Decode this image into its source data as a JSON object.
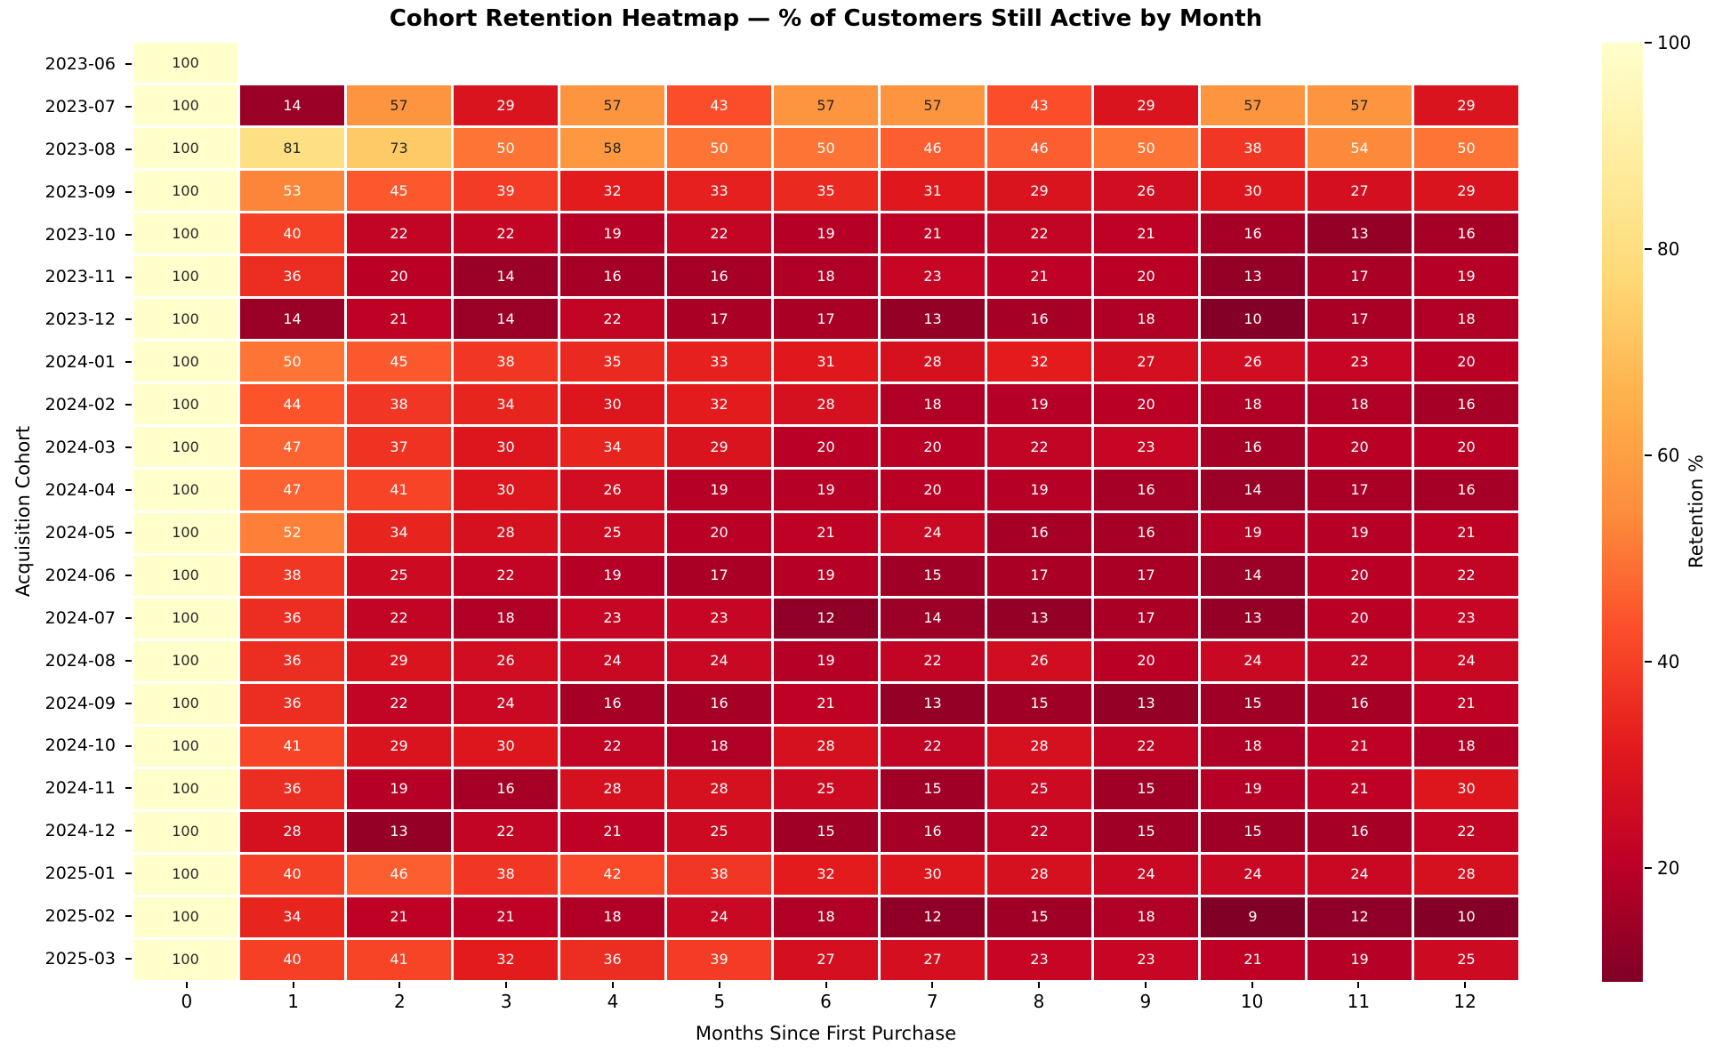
{
  "chart_data": {
    "type": "heatmap",
    "title": "Cohort Retention Heatmap — % of Customers Still Active by Month",
    "xlabel": "Months Since First Purchase",
    "ylabel": "Acquisition Cohort",
    "colorbar_label": "Retention %",
    "colorbar_ticks": [
      100,
      80,
      60,
      40,
      20
    ],
    "x_ticks": [
      "0",
      "1",
      "2",
      "3",
      "4",
      "5",
      "6",
      "7",
      "8",
      "9",
      "10",
      "11",
      "12"
    ],
    "cohorts": [
      "2023-06",
      "2023-07",
      "2023-08",
      "2023-09",
      "2023-10",
      "2023-11",
      "2023-12",
      "2024-01",
      "2024-02",
      "2024-03",
      "2024-04",
      "2024-05",
      "2024-06",
      "2024-07",
      "2024-08",
      "2024-09",
      "2024-10",
      "2024-11",
      "2024-12",
      "2025-01",
      "2025-02",
      "2025-03"
    ],
    "values": [
      [
        100,
        null,
        null,
        null,
        null,
        null,
        null,
        null,
        null,
        null,
        null,
        null,
        null
      ],
      [
        100,
        14,
        57,
        29,
        57,
        43,
        57,
        57,
        43,
        29,
        57,
        57,
        29
      ],
      [
        100,
        81,
        73,
        50,
        58,
        50,
        50,
        46,
        46,
        50,
        38,
        54,
        50
      ],
      [
        100,
        53,
        45,
        39,
        32,
        33,
        35,
        31,
        29,
        26,
        30,
        27,
        29
      ],
      [
        100,
        40,
        22,
        22,
        19,
        22,
        19,
        21,
        22,
        21,
        16,
        13,
        16
      ],
      [
        100,
        36,
        20,
        14,
        16,
        16,
        18,
        23,
        21,
        20,
        13,
        17,
        19
      ],
      [
        100,
        14,
        21,
        14,
        22,
        17,
        17,
        13,
        16,
        18,
        10,
        17,
        18
      ],
      [
        100,
        50,
        45,
        38,
        35,
        33,
        31,
        28,
        32,
        27,
        26,
        23,
        20
      ],
      [
        100,
        44,
        38,
        34,
        30,
        32,
        28,
        18,
        19,
        20,
        18,
        18,
        16
      ],
      [
        100,
        47,
        37,
        30,
        34,
        29,
        20,
        20,
        22,
        23,
        16,
        20,
        20
      ],
      [
        100,
        47,
        41,
        30,
        26,
        19,
        19,
        20,
        19,
        16,
        14,
        17,
        16
      ],
      [
        100,
        52,
        34,
        28,
        25,
        20,
        21,
        24,
        16,
        16,
        19,
        19,
        21
      ],
      [
        100,
        38,
        25,
        22,
        19,
        17,
        19,
        15,
        17,
        17,
        14,
        20,
        22
      ],
      [
        100,
        36,
        22,
        18,
        23,
        23,
        12,
        14,
        13,
        17,
        13,
        20,
        23
      ],
      [
        100,
        36,
        29,
        26,
        24,
        24,
        19,
        22,
        26,
        20,
        24,
        22,
        24
      ],
      [
        100,
        36,
        22,
        24,
        16,
        16,
        21,
        13,
        15,
        13,
        15,
        16,
        21
      ],
      [
        100,
        41,
        29,
        30,
        22,
        18,
        28,
        22,
        28,
        22,
        18,
        21,
        18
      ],
      [
        100,
        36,
        19,
        16,
        28,
        28,
        25,
        15,
        25,
        15,
        19,
        21,
        30
      ],
      [
        100,
        28,
        13,
        22,
        21,
        25,
        15,
        16,
        22,
        15,
        15,
        16,
        22
      ],
      [
        100,
        40,
        46,
        38,
        42,
        38,
        32,
        30,
        28,
        24,
        24,
        24,
        28
      ],
      [
        100,
        34,
        21,
        21,
        18,
        24,
        18,
        12,
        15,
        18,
        9,
        12,
        10
      ],
      [
        100,
        40,
        41,
        32,
        36,
        39,
        27,
        27,
        23,
        23,
        21,
        19,
        25
      ]
    ],
    "vmin": 9,
    "vmax": 100,
    "colormap": {
      "name": "YlOrRd_r",
      "stops_light_to_dark": [
        "#ffffcc",
        "#ffeda0",
        "#fed976",
        "#feb24c",
        "#fd8d3c",
        "#fc4e2a",
        "#e31a1c",
        "#bd0026",
        "#800026"
      ]
    },
    "annotation_text_colors": {
      "dark": "#262626",
      "light": "#ffffff"
    },
    "background": "#ffffff",
    "grid_line_color": "#ffffff",
    "legend_position": "right-colorbar"
  }
}
